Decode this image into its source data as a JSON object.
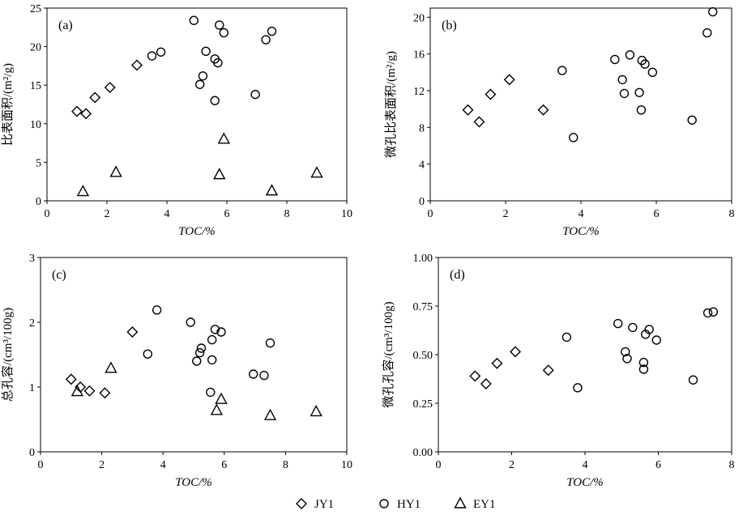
{
  "colors": {
    "frame": "#000000",
    "marker_stroke": "#000000",
    "background": "#ffffff"
  },
  "legend": {
    "placement": "bottom-center",
    "entries": [
      {
        "name": "JY1",
        "marker": "diamond"
      },
      {
        "name": "HY1",
        "marker": "circle"
      },
      {
        "name": "EY1",
        "marker": "triangle"
      }
    ]
  },
  "chart_data": [
    {
      "panel": "(a)",
      "type": "scatter",
      "xlabel": "TOC/%",
      "ylabel": "比表面积/(m²/g)",
      "xlim": [
        0,
        10
      ],
      "ylim": [
        0,
        25
      ],
      "xticks": [
        "0",
        "2",
        "4",
        "6",
        "8",
        "10"
      ],
      "yticks": [
        "0",
        "5",
        "10",
        "15",
        "20",
        "25"
      ],
      "grid": false,
      "series": [
        {
          "name": "JY1",
          "marker": "diamond",
          "points": [
            [
              1.0,
              11.6
            ],
            [
              1.3,
              11.3
            ],
            [
              1.6,
              13.4
            ],
            [
              2.1,
              14.7
            ],
            [
              3.0,
              17.6
            ]
          ]
        },
        {
          "name": "HY1",
          "marker": "circle",
          "points": [
            [
              3.5,
              18.8
            ],
            [
              3.8,
              19.3
            ],
            [
              4.9,
              23.4
            ],
            [
              5.1,
              15.1
            ],
            [
              5.2,
              16.2
            ],
            [
              5.3,
              19.4
            ],
            [
              5.6,
              13.0
            ],
            [
              5.6,
              18.4
            ],
            [
              5.7,
              17.9
            ],
            [
              5.75,
              22.8
            ],
            [
              5.9,
              21.8
            ],
            [
              6.95,
              13.8
            ],
            [
              7.3,
              20.9
            ],
            [
              7.5,
              22.0
            ]
          ]
        },
        {
          "name": "EY1",
          "marker": "triangle",
          "points": [
            [
              1.2,
              1.2
            ],
            [
              2.3,
              3.7
            ],
            [
              5.75,
              3.4
            ],
            [
              5.9,
              8.0
            ],
            [
              7.5,
              1.3
            ],
            [
              9.0,
              3.6
            ]
          ]
        }
      ]
    },
    {
      "panel": "(b)",
      "type": "scatter",
      "xlabel": "TOC/%",
      "ylabel": "微孔比表面积/(m²/g)",
      "xlim": [
        0,
        8
      ],
      "ylim": [
        0,
        21
      ],
      "xticks": [
        "0",
        "2",
        "4",
        "6",
        "8"
      ],
      "yticks": [
        "0",
        "4",
        "8",
        "12",
        "16",
        "20"
      ],
      "grid": false,
      "series": [
        {
          "name": "JY1",
          "marker": "diamond",
          "points": [
            [
              1.0,
              9.9
            ],
            [
              1.3,
              8.6
            ],
            [
              1.6,
              11.6
            ],
            [
              2.1,
              13.2
            ],
            [
              3.0,
              9.9
            ]
          ]
        },
        {
          "name": "HY1",
          "marker": "circle",
          "points": [
            [
              3.5,
              14.2
            ],
            [
              3.8,
              6.9
            ],
            [
              4.9,
              15.4
            ],
            [
              5.1,
              13.2
            ],
            [
              5.15,
              11.7
            ],
            [
              5.3,
              15.9
            ],
            [
              5.55,
              11.8
            ],
            [
              5.6,
              9.9
            ],
            [
              5.62,
              15.3
            ],
            [
              5.7,
              14.9
            ],
            [
              5.9,
              14.0
            ],
            [
              6.95,
              8.8
            ],
            [
              7.35,
              18.3
            ],
            [
              7.5,
              20.6
            ]
          ]
        }
      ]
    },
    {
      "panel": "(c)",
      "type": "scatter",
      "xlabel": "TOC/%",
      "ylabel": "总孔容/(cm³/100g)",
      "xlim": [
        0,
        10
      ],
      "ylim": [
        0,
        3
      ],
      "xticks": [
        "0",
        "2",
        "4",
        "6",
        "8",
        "10"
      ],
      "yticks": [
        "0",
        "1",
        "2",
        "3"
      ],
      "grid": false,
      "series": [
        {
          "name": "JY1",
          "marker": "diamond",
          "points": [
            [
              1.0,
              1.12
            ],
            [
              1.3,
              1.0
            ],
            [
              1.6,
              0.94
            ],
            [
              2.1,
              0.91
            ],
            [
              3.0,
              1.85
            ]
          ]
        },
        {
          "name": "HY1",
          "marker": "circle",
          "points": [
            [
              3.5,
              1.51
            ],
            [
              3.8,
              2.19
            ],
            [
              4.9,
              2.0
            ],
            [
              5.1,
              1.4
            ],
            [
              5.2,
              1.53
            ],
            [
              5.25,
              1.6
            ],
            [
              5.55,
              0.92
            ],
            [
              5.6,
              1.42
            ],
            [
              5.6,
              1.73
            ],
            [
              5.7,
              1.89
            ],
            [
              5.9,
              1.85
            ],
            [
              6.95,
              1.2
            ],
            [
              7.3,
              1.18
            ],
            [
              7.5,
              1.68
            ]
          ]
        },
        {
          "name": "EY1",
          "marker": "triangle",
          "points": [
            [
              1.2,
              0.93
            ],
            [
              2.3,
              1.29
            ],
            [
              5.75,
              0.64
            ],
            [
              5.9,
              0.81
            ],
            [
              7.5,
              0.56
            ],
            [
              9.0,
              0.62
            ]
          ]
        }
      ]
    },
    {
      "panel": "(d)",
      "type": "scatter",
      "xlabel": "TOC/%",
      "ylabel": "微孔孔容/(cm³/100g)",
      "xlim": [
        0,
        8
      ],
      "ylim": [
        0,
        1.0
      ],
      "xticks": [
        "0",
        "2",
        "4",
        "6",
        "8"
      ],
      "yticks": [
        "0.00",
        "0.25",
        "0.50",
        "0.75",
        "1.00"
      ],
      "grid": false,
      "series": [
        {
          "name": "JY1",
          "marker": "diamond",
          "points": [
            [
              1.0,
              0.39
            ],
            [
              1.3,
              0.35
            ],
            [
              1.6,
              0.455
            ],
            [
              2.1,
              0.515
            ],
            [
              3.0,
              0.42
            ]
          ]
        },
        {
          "name": "HY1",
          "marker": "circle",
          "points": [
            [
              3.5,
              0.59
            ],
            [
              3.8,
              0.33
            ],
            [
              4.9,
              0.66
            ],
            [
              5.1,
              0.515
            ],
            [
              5.15,
              0.48
            ],
            [
              5.3,
              0.64
            ],
            [
              5.6,
              0.46
            ],
            [
              5.6,
              0.425
            ],
            [
              5.65,
              0.605
            ],
            [
              5.75,
              0.63
            ],
            [
              5.95,
              0.575
            ],
            [
              6.95,
              0.37
            ],
            [
              7.35,
              0.715
            ],
            [
              7.5,
              0.72
            ]
          ]
        }
      ]
    }
  ]
}
